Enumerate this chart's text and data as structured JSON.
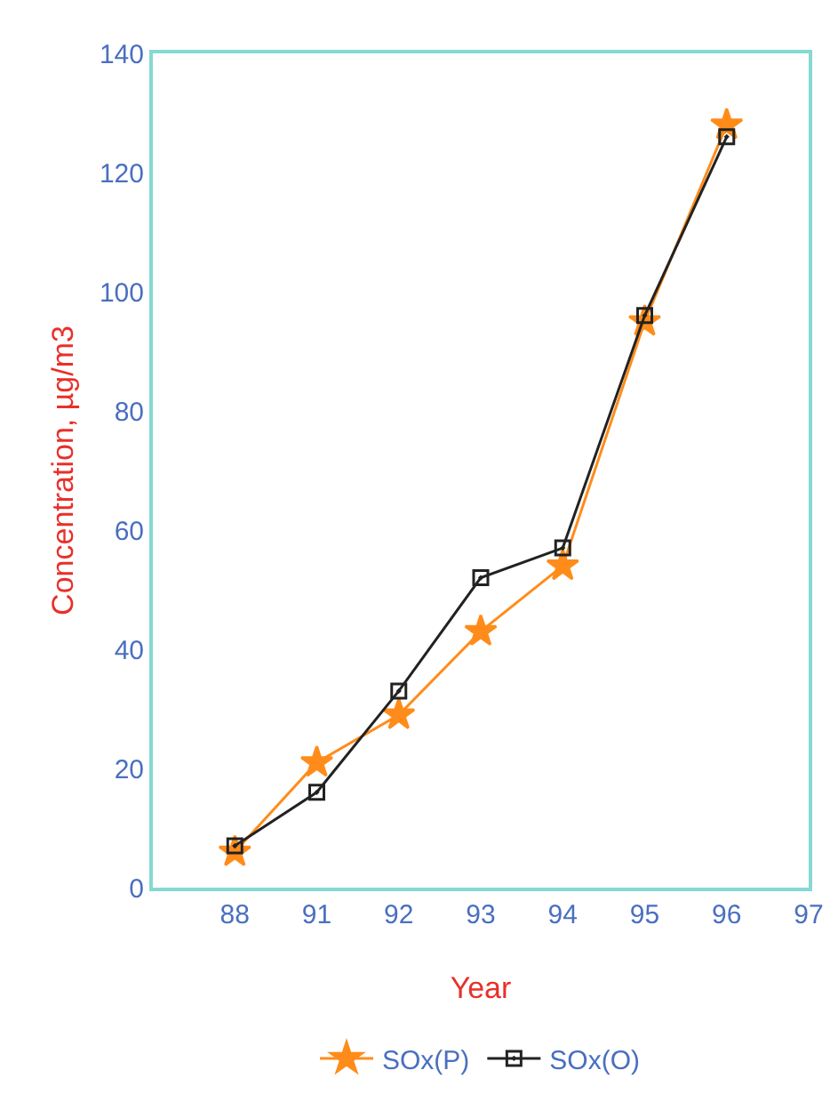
{
  "chart_data": {
    "type": "line",
    "xlabel": "Year",
    "ylabel": "Concentration, µg/m3",
    "categories": [
      "88",
      "91",
      "92",
      "93",
      "94",
      "95",
      "96",
      "97"
    ],
    "series": [
      {
        "name": "SOx(P)",
        "color": "#ff8c1a",
        "marker": "star",
        "values": [
          6,
          21,
          29,
          43,
          54,
          95,
          128,
          null
        ]
      },
      {
        "name": "SOx(O)",
        "color": "#222222",
        "marker": "square",
        "values": [
          7,
          16,
          33,
          52,
          57,
          96,
          126,
          null
        ]
      }
    ],
    "ylim": [
      0,
      140
    ],
    "yticks": [
      0,
      20,
      40,
      60,
      80,
      100,
      120,
      140
    ],
    "grid": false,
    "legend": "bottom",
    "line_style": "solid"
  }
}
